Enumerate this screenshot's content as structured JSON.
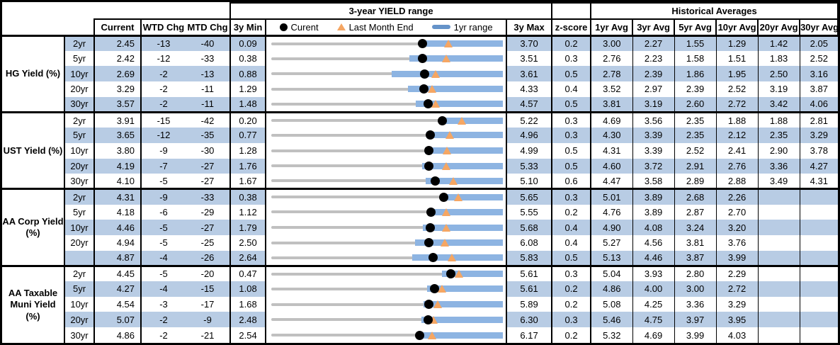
{
  "header": {
    "yield_range": "3-year YIELD range",
    "historical": "Historical Averages"
  },
  "columns": {
    "current": "Current",
    "wtd": "WTD Chg",
    "mtd": "MTD Chg",
    "min": "3y Min",
    "max": "3y Max",
    "zscore": "z-score",
    "avgs": [
      "1yr Avg",
      "3yr Avg",
      "5yr Avg",
      "10yr Avg",
      "20yr Avg",
      "30yr Avg"
    ]
  },
  "legend": {
    "current": "Curent",
    "last_month": "Last Month End",
    "range": "1yr range"
  },
  "colors": {
    "row_shade": "#b8cce4",
    "bar": "#8db4e2",
    "legend_bar": "#6593c9",
    "track": "#c0c0c0",
    "triangle": "#f5a663",
    "dot": "#000000"
  },
  "chart_data": {
    "type": "table",
    "embedded_chart": {
      "type": "range",
      "title": "3-year YIELD range",
      "legend": [
        "Curent",
        "Last Month End",
        "1yr range"
      ],
      "x_axis_per_row": "scaled from 3y Min to 3y Max"
    },
    "groups": [
      {
        "label": "HG Yield (%)",
        "rows": [
          {
            "tenor": "2yr",
            "current": "2.45",
            "wtd": "-13",
            "mtd": "-40",
            "min": "0.09",
            "max": "3.70",
            "z": "0.2",
            "last_month_end": 2.85,
            "range1yr_low_est": 2.4,
            "avgs": [
              "3.00",
              "2.27",
              "1.55",
              "1.29",
              "1.42",
              "2.05"
            ]
          },
          {
            "tenor": "5yr",
            "current": "2.42",
            "wtd": "-12",
            "mtd": "-33",
            "min": "0.38",
            "max": "3.51",
            "z": "0.3",
            "last_month_end": 2.75,
            "range1yr_low_est": 2.25,
            "avgs": [
              "2.76",
              "2.23",
              "1.58",
              "1.51",
              "1.83",
              "2.52"
            ]
          },
          {
            "tenor": "10yr",
            "current": "2.69",
            "wtd": "-2",
            "mtd": "-13",
            "min": "0.88",
            "max": "3.61",
            "z": "0.5",
            "last_month_end": 2.82,
            "range1yr_low_est": 2.3,
            "avgs": [
              "2.78",
              "2.39",
              "1.86",
              "1.95",
              "2.50",
              "3.16"
            ]
          },
          {
            "tenor": "20yr",
            "current": "3.29",
            "wtd": "-2",
            "mtd": "-11",
            "min": "1.29",
            "max": "4.33",
            "z": "0.4",
            "last_month_end": 3.4,
            "range1yr_low_est": 3.08,
            "avgs": [
              "3.52",
              "2.97",
              "2.39",
              "2.52",
              "3.19",
              "3.87"
            ]
          },
          {
            "tenor": "30yr",
            "current": "3.57",
            "wtd": "-2",
            "mtd": "-11",
            "min": "1.48",
            "max": "4.57",
            "z": "0.5",
            "last_month_end": 3.68,
            "range1yr_low_est": 3.41,
            "avgs": [
              "3.81",
              "3.19",
              "2.60",
              "2.72",
              "3.42",
              "4.06"
            ]
          }
        ]
      },
      {
        "label": "UST Yield (%)",
        "rows": [
          {
            "tenor": "2yr",
            "current": "3.91",
            "wtd": "-15",
            "mtd": "-42",
            "min": "0.20",
            "max": "5.22",
            "z": "0.3",
            "last_month_end": 4.33,
            "range1yr_low_est": 3.83,
            "avgs": [
              "4.69",
              "3.56",
              "2.35",
              "1.88",
              "1.88",
              "2.81"
            ]
          },
          {
            "tenor": "5yr",
            "current": "3.65",
            "wtd": "-12",
            "mtd": "-35",
            "min": "0.77",
            "max": "4.96",
            "z": "0.3",
            "last_month_end": 4.0,
            "range1yr_low_est": 3.57,
            "avgs": [
              "4.30",
              "3.39",
              "2.35",
              "2.12",
              "2.35",
              "3.29"
            ]
          },
          {
            "tenor": "10yr",
            "current": "3.80",
            "wtd": "-9",
            "mtd": "-30",
            "min": "1.28",
            "max": "4.99",
            "z": "0.5",
            "last_month_end": 4.1,
            "range1yr_low_est": 3.74,
            "avgs": [
              "4.31",
              "3.39",
              "2.52",
              "2.41",
              "2.90",
              "3.78"
            ]
          },
          {
            "tenor": "20yr",
            "current": "4.19",
            "wtd": "-7",
            "mtd": "-27",
            "min": "1.76",
            "max": "5.33",
            "z": "0.5",
            "last_month_end": 4.46,
            "range1yr_low_est": 4.09,
            "avgs": [
              "4.60",
              "3.72",
              "2.91",
              "2.76",
              "3.36",
              "4.27"
            ]
          },
          {
            "tenor": "30yr",
            "current": "4.10",
            "wtd": "-5",
            "mtd": "-27",
            "min": "1.67",
            "max": "5.10",
            "z": "0.6",
            "last_month_end": 4.37,
            "range1yr_low_est": 3.96,
            "avgs": [
              "4.47",
              "3.58",
              "2.89",
              "2.88",
              "3.49",
              "4.31"
            ]
          }
        ]
      },
      {
        "label": "AA Corp Yield (%)",
        "rows": [
          {
            "tenor": "2yr",
            "current": "4.31",
            "wtd": "-9",
            "mtd": "-33",
            "min": "0.38",
            "max": "5.65",
            "z": "0.3",
            "last_month_end": 4.64,
            "range1yr_low_est": 4.27,
            "avgs": [
              "5.01",
              "3.89",
              "2.68",
              "2.26",
              "",
              ""
            ]
          },
          {
            "tenor": "5yr",
            "current": "4.18",
            "wtd": "-6",
            "mtd": "-29",
            "min": "1.12",
            "max": "5.55",
            "z": "0.2",
            "last_month_end": 4.47,
            "range1yr_low_est": 4.11,
            "avgs": [
              "4.76",
              "3.89",
              "2.87",
              "2.70",
              "",
              ""
            ]
          },
          {
            "tenor": "10yr",
            "current": "4.46",
            "wtd": "-5",
            "mtd": "-27",
            "min": "1.79",
            "max": "5.68",
            "z": "0.4",
            "last_month_end": 4.73,
            "range1yr_low_est": 4.33,
            "avgs": [
              "4.90",
              "4.08",
              "3.24",
              "3.20",
              "",
              ""
            ]
          },
          {
            "tenor": "20yr",
            "current": "4.94",
            "wtd": "-5",
            "mtd": "-25",
            "min": "2.50",
            "max": "6.08",
            "z": "0.4",
            "last_month_end": 5.19,
            "range1yr_low_est": 4.72,
            "avgs": [
              "5.27",
              "4.56",
              "3.81",
              "3.76",
              "",
              ""
            ]
          },
          {
            "tenor": "",
            "current": "4.87",
            "wtd": "-4",
            "mtd": "-26",
            "min": "2.64",
            "max": "5.83",
            "z": "0.5",
            "last_month_end": 5.13,
            "range1yr_low_est": 4.58,
            "avgs": [
              "5.13",
              "4.46",
              "3.87",
              "3.99",
              "",
              ""
            ]
          }
        ]
      },
      {
        "label": "AA Taxable Muni Yield (%)",
        "rows": [
          {
            "tenor": "2yr",
            "current": "4.45",
            "wtd": "-5",
            "mtd": "-20",
            "min": "0.47",
            "max": "5.61",
            "z": "0.3",
            "last_month_end": 4.65,
            "range1yr_low_est": 4.26,
            "avgs": [
              "5.04",
              "3.93",
              "2.80",
              "2.29",
              "",
              ""
            ]
          },
          {
            "tenor": "5yr",
            "current": "4.27",
            "wtd": "-4",
            "mtd": "-15",
            "min": "1.08",
            "max": "5.61",
            "z": "0.2",
            "last_month_end": 4.42,
            "range1yr_low_est": 4.13,
            "avgs": [
              "4.86",
              "4.00",
              "3.00",
              "2.72",
              "",
              ""
            ]
          },
          {
            "tenor": "10yr",
            "current": "4.54",
            "wtd": "-3",
            "mtd": "-17",
            "min": "1.68",
            "max": "5.89",
            "z": "0.2",
            "last_month_end": 4.71,
            "range1yr_low_est": 4.45,
            "avgs": [
              "5.08",
              "4.25",
              "3.36",
              "3.29",
              "",
              ""
            ]
          },
          {
            "tenor": "20yr",
            "current": "5.07",
            "wtd": "-2",
            "mtd": "-9",
            "min": "2.48",
            "max": "6.30",
            "z": "0.3",
            "last_month_end": 5.16,
            "range1yr_low_est": 4.96,
            "avgs": [
              "5.46",
              "4.75",
              "3.97",
              "3.95",
              "",
              ""
            ]
          },
          {
            "tenor": "30yr",
            "current": "4.86",
            "wtd": "-2",
            "mtd": "-21",
            "min": "2.54",
            "max": "6.17",
            "z": "0.2",
            "last_month_end": 5.07,
            "range1yr_low_est": 4.81,
            "avgs": [
              "5.32",
              "4.69",
              "3.99",
              "4.03",
              "",
              ""
            ]
          }
        ]
      }
    ]
  }
}
